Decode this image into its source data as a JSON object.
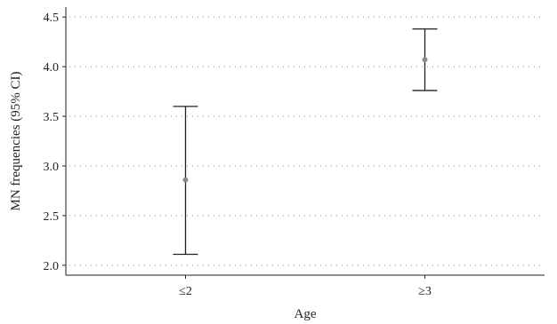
{
  "chart_data": {
    "type": "errorbar",
    "title": "",
    "xlabel": "Age",
    "ylabel": "MN frequencies (95% CI)",
    "categories": [
      "≤2",
      "≥3"
    ],
    "series": [
      {
        "mean": [
          2.86,
          4.07
        ],
        "lower": [
          2.11,
          3.76
        ],
        "upper": [
          3.6,
          4.38
        ]
      }
    ],
    "ylim": [
      1.9,
      4.6
    ],
    "yticks": [
      2.0,
      2.5,
      3.0,
      3.5,
      4.0,
      4.5
    ],
    "ytick_labels": [
      "2.0",
      "2.5",
      "3.0",
      "3.5",
      "4.0",
      "4.5"
    ],
    "grid": true,
    "colors": {
      "point": "#8c8c8c",
      "line": "#222222",
      "grid": "#888888"
    }
  }
}
